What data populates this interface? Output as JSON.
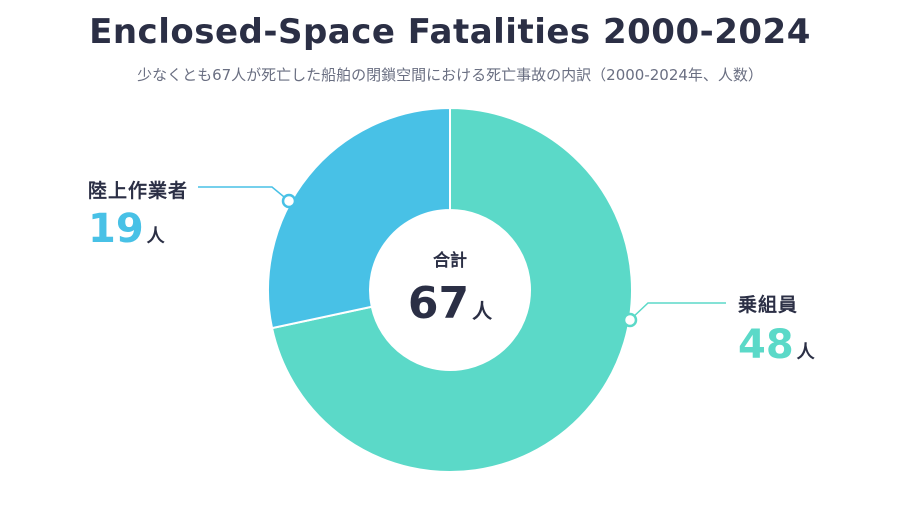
{
  "header": {
    "title": "Enclosed-Space Fatalities 2000-2024",
    "subtitle": "少なくとも67人が死亡した船舶の閉鎖空間における死亡事故の内訳（2000-2024年、人数）"
  },
  "center": {
    "caption": "合計",
    "value": "67",
    "unit": "人"
  },
  "labels": {
    "land": {
      "name": "陸上作業者",
      "value": "19",
      "unit": "人"
    },
    "crew": {
      "name": "乗組員",
      "value": "48",
      "unit": "人"
    }
  },
  "colors": {
    "crew": "#5bd9c8",
    "land": "#48c1e6",
    "text": "#2b2f45"
  },
  "chart_data": {
    "type": "pie",
    "title": "Enclosed-Space Fatalities 2000-2024",
    "subtitle": "少なくとも67人が死亡した船舶の閉鎖空間における死亡事故の内訳（2000-2024年、人数）",
    "categories": [
      "乗組員",
      "陸上作業者"
    ],
    "values": [
      48,
      19
    ],
    "total": 67,
    "unit": "人",
    "colors": [
      "#5bd9c8",
      "#48c1e6"
    ],
    "donut": true
  }
}
